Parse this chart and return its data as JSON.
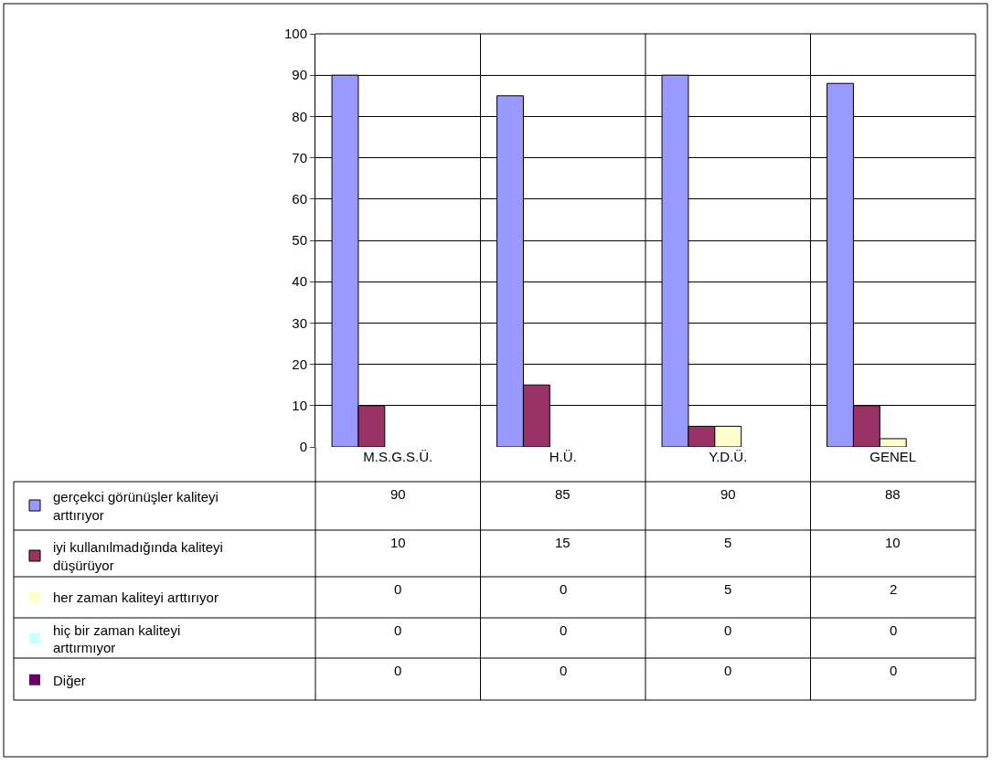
{
  "chart_data": {
    "type": "bar",
    "categories": [
      "M.S.G.S.Ü.",
      "H.Ü.",
      "Y.D.Ü.",
      "GENEL"
    ],
    "series": [
      {
        "name": "gerçekci görünüşler kaliteyi arttırıyor",
        "color": "#9999ff",
        "values": [
          90,
          85,
          90,
          88
        ]
      },
      {
        "name": "iyi kullanılmadığında kaliteyi düşürüyor",
        "color": "#993366",
        "values": [
          10,
          15,
          5,
          10
        ]
      },
      {
        "name": "her zaman kaliteyi arttırıyor",
        "color": "#ffffcc",
        "values": [
          0,
          0,
          5,
          2
        ]
      },
      {
        "name": "hiç bir zaman kaliteyi arttırmıyor",
        "color": "#ccffff",
        "values": [
          0,
          0,
          0,
          0
        ]
      },
      {
        "name": "Diğer",
        "color": "#660066",
        "values": [
          0,
          0,
          0,
          0
        ]
      }
    ],
    "ylim": [
      0,
      100
    ],
    "yticks": [
      0,
      10,
      20,
      30,
      40,
      50,
      60,
      70,
      80,
      90,
      100
    ],
    "grid": "y",
    "legend": "bottom left",
    "data_labels": true
  }
}
